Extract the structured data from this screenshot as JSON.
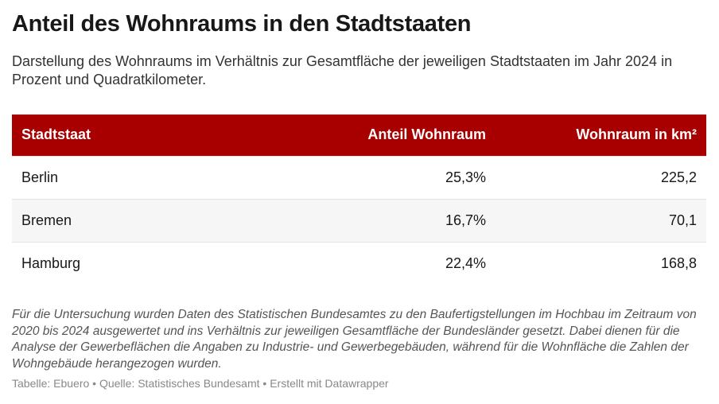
{
  "title": "Anteil des Wohnraums in den Stadtstaaten",
  "subtitle": "Darstellung des Wohnraums im Verhältnis zur Gesamtfläche der jeweiligen Stadtstaaten im Jahr 2024 in Prozent und Quadratkilometer.",
  "colors": {
    "header_bg": "#a80000",
    "header_text": "#ffffff",
    "stripe": "#f6f6f6"
  },
  "chart_data": {
    "type": "table",
    "columns": [
      "Stadtstaat",
      "Anteil Wohnraum",
      "Wohnraum in km²"
    ],
    "rows": [
      [
        "Berlin",
        "25,3%",
        "225,2"
      ],
      [
        "Bremen",
        "16,7%",
        "70,1"
      ],
      [
        "Hamburg",
        "22,4%",
        "168,8"
      ]
    ]
  },
  "notes": "Für die Untersuchung wurden Daten des Statistischen Bundesamtes zu den Baufertigstellungen im Hochbau im Zeitraum von 2020 bis 2024 ausgewertet und ins Verhältnis zur jeweiligen Gesamtfläche der Bundesländer gesetzt. Dabei dienen für die Analyse der Gewerbeflächen die Angaben zu Industrie- und Gewerbegebäuden, während für die Wohnfläche die Zahlen der Wohngebäude herangezogen wurden.",
  "source": "Tabelle: Ebuero • Quelle: Statistisches Bundesamt • Erstellt mit Datawrapper"
}
